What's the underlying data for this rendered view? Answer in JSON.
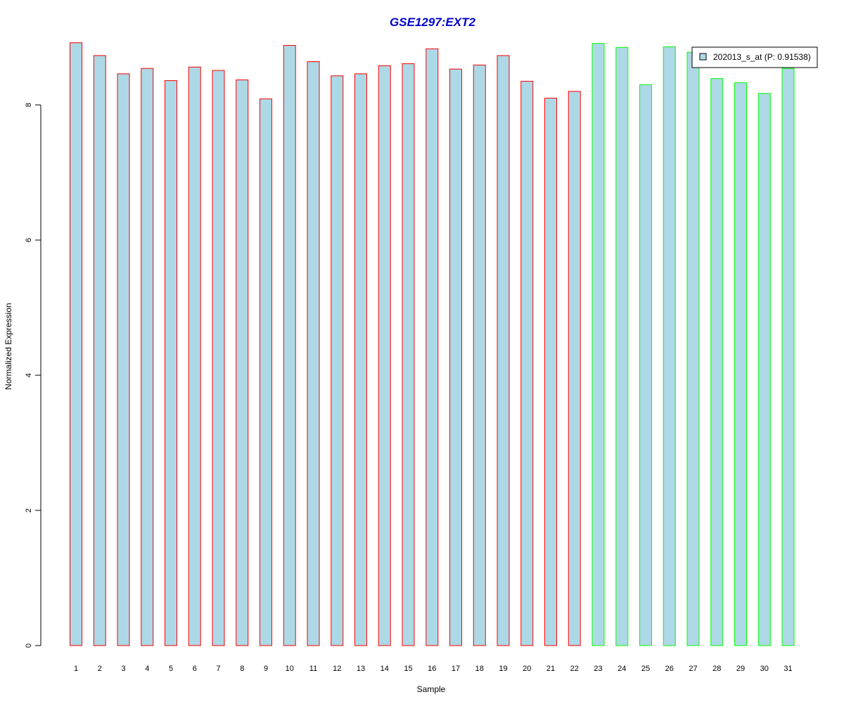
{
  "chart_data": {
    "type": "bar",
    "title": "GSE1297:EXT2",
    "xlabel": "Sample",
    "ylabel": "Normalized Expression",
    "ylim": [
      0,
      9
    ],
    "yticks": [
      0,
      2,
      4,
      6,
      8
    ],
    "grid": false,
    "legend_position": "top-right",
    "legend_label": "202013_s_at (P: 0.91538)",
    "categories": [
      "1",
      "2",
      "3",
      "4",
      "5",
      "6",
      "7",
      "8",
      "9",
      "10",
      "11",
      "12",
      "13",
      "14",
      "15",
      "16",
      "17",
      "18",
      "19",
      "20",
      "21",
      "22",
      "23",
      "24",
      "25",
      "26",
      "27",
      "28",
      "29",
      "30",
      "31"
    ],
    "values": [
      8.92,
      8.73,
      8.46,
      8.54,
      8.36,
      8.56,
      8.51,
      8.37,
      8.09,
      8.88,
      8.64,
      8.43,
      8.46,
      8.58,
      8.61,
      8.83,
      8.53,
      8.59,
      8.73,
      8.35,
      8.1,
      8.2,
      8.91,
      8.85,
      8.3,
      8.86,
      8.78,
      8.39,
      8.33,
      8.17,
      8.54
    ],
    "group_colors": [
      "#FF0000",
      "#FF0000",
      "#FF0000",
      "#FF0000",
      "#FF0000",
      "#FF0000",
      "#FF0000",
      "#FF0000",
      "#FF0000",
      "#FF0000",
      "#FF0000",
      "#FF0000",
      "#FF0000",
      "#FF0000",
      "#FF0000",
      "#FF0000",
      "#FF0000",
      "#FF0000",
      "#FF0000",
      "#FF0000",
      "#FF0000",
      "#FF0000",
      "#00FF00",
      "#00FF00",
      "#00FF00",
      "#00FF00",
      "#00FF00",
      "#00FF00",
      "#00FF00",
      "#00FF00",
      "#00FF00"
    ],
    "bar_fill": "#ADD8E6",
    "title_color": "#0000CD"
  }
}
